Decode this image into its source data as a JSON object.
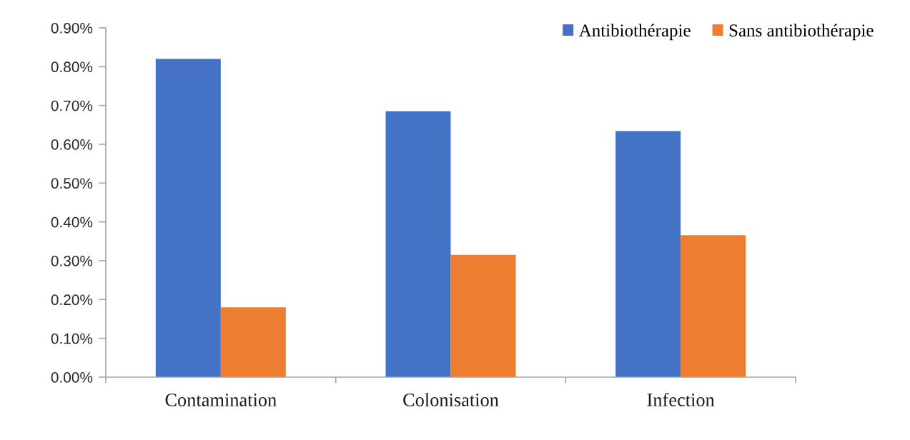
{
  "chart_data": {
    "type": "bar",
    "categories": [
      "Contamination",
      "Colonisation",
      "Infection"
    ],
    "series": [
      {
        "name": "Antibiothérapie",
        "color": "#4472c4",
        "values": [
          0.82,
          0.685,
          0.634
        ]
      },
      {
        "name": "Sans antibiothérapie",
        "color": "#ed7d31",
        "values": [
          0.18,
          0.315,
          0.366
        ]
      }
    ],
    "ylim": [
      0,
      0.9
    ],
    "yticks": [
      {
        "value": 0,
        "label": "0.00%"
      },
      {
        "value": 0.1,
        "label": "0.10%"
      },
      {
        "value": 0.2,
        "label": "0.20%"
      },
      {
        "value": 0.3,
        "label": "0.30%"
      },
      {
        "value": 0.4,
        "label": "0.40%"
      },
      {
        "value": 0.5,
        "label": "0.50%"
      },
      {
        "value": 0.6,
        "label": "0.60%"
      },
      {
        "value": 0.7,
        "label": "0.70%"
      },
      {
        "value": 0.8,
        "label": "0.80%"
      },
      {
        "value": 0.9,
        "label": "0.90%"
      }
    ],
    "legend": "top right"
  }
}
